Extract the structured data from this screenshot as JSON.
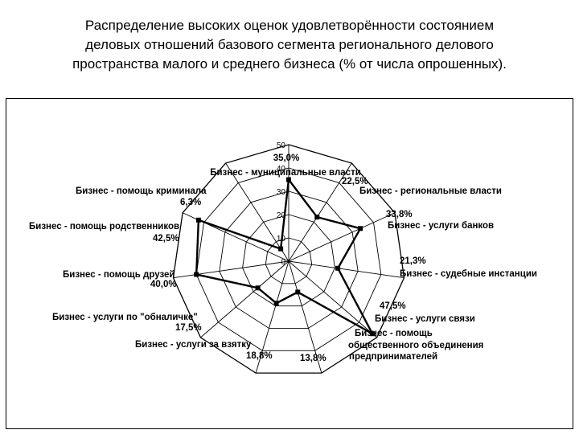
{
  "title_lines": [
    "Распределение высоких оценок удовлетворённости состоянием",
    "деловых отношений базового сегмента регионального делового",
    "пространства малого и среднего бизнеса (% от числа опрошенных)."
  ],
  "chart_data": {
    "type": "radar",
    "title": "Распределение высоких оценок удовлетворённости состоянием деловых отношений базового сегмента регионального делового пространства малого и среднего бизнеса (% от числа опрошенных).",
    "rmin": 0,
    "rmax": 50,
    "ticks": [
      0,
      10,
      20,
      30,
      40,
      50
    ],
    "tick_labels": [
      "0",
      "10",
      "20",
      "30",
      "40",
      "50"
    ],
    "grid": true,
    "categories": [
      "Бизнес - муниципальные власти",
      "Бизнес - региональные власти",
      "Бизнес - услуги банков",
      "Бизнес - судебные инстанции",
      "Бизнес - услуги связи",
      "Бизнес - помощь общественного объединения предпринимателей",
      "Бизнес - услуги за взятку",
      "Бизнес - услуги по \"обналичке\"",
      "Бизнес - помощь друзей",
      "Бизнес - помощь родственников",
      "Бизнес - помощь криминала"
    ],
    "values": [
      35.0,
      22.5,
      33.8,
      21.3,
      47.5,
      13.8,
      18.8,
      17.5,
      40.0,
      42.5,
      6.3
    ],
    "data_labels": [
      "35,0%",
      "22,5%",
      "33,8%",
      "21,3%",
      "47,5%",
      "13,8%",
      "18,8%",
      "17,5%",
      "40,0%",
      "42,5%",
      "6,3%"
    ],
    "series_color": "#000000"
  }
}
